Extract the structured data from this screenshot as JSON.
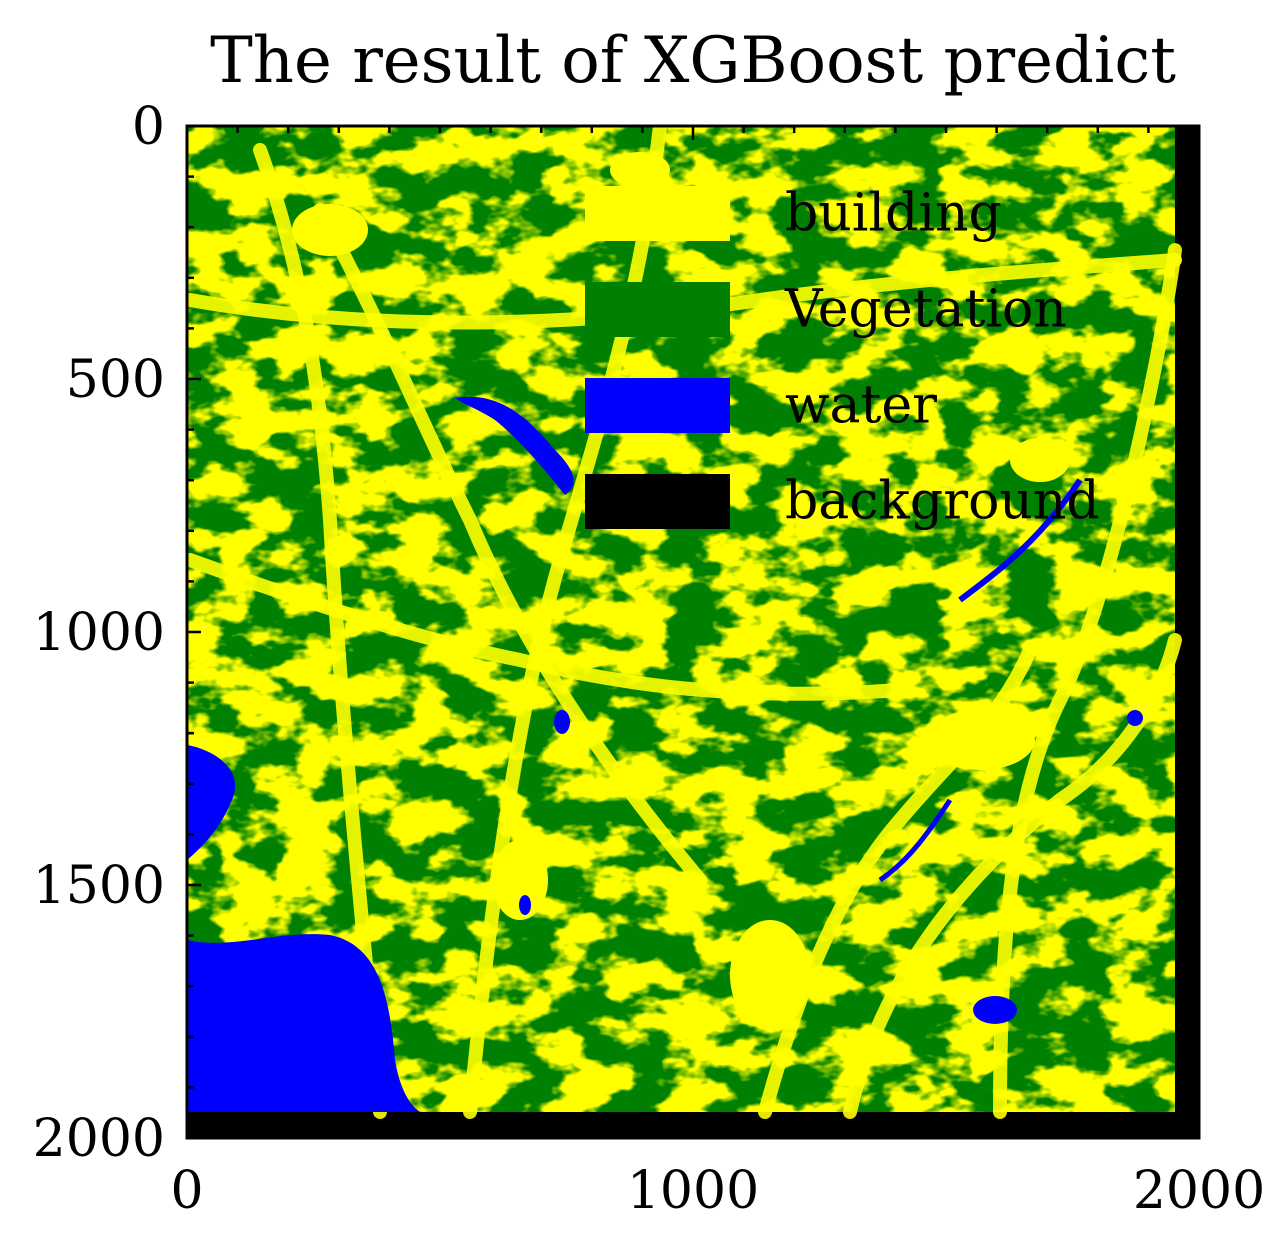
{
  "chart_data": {
    "type": "heatmap",
    "title": "The result of XGBoost predict",
    "xlabel": "",
    "ylabel": "",
    "xlim": [
      0,
      2000
    ],
    "ylim": [
      2000,
      0
    ],
    "x_ticks": [
      0,
      1000,
      2000
    ],
    "y_ticks": [
      0,
      500,
      1000,
      1500,
      2000
    ],
    "x_tick_labels": [
      "0",
      "1000",
      "2000"
    ],
    "y_tick_labels": [
      "0",
      "500",
      "1000",
      "1500",
      "2000"
    ],
    "classes": [
      {
        "name": "building",
        "color": "#ffff00"
      },
      {
        "name": "Vegetation",
        "color": "#008000"
      },
      {
        "name": "water",
        "color": "#0000ff"
      },
      {
        "name": "background",
        "color": "#000000"
      }
    ],
    "legend_position": "top-right",
    "grid": false
  }
}
